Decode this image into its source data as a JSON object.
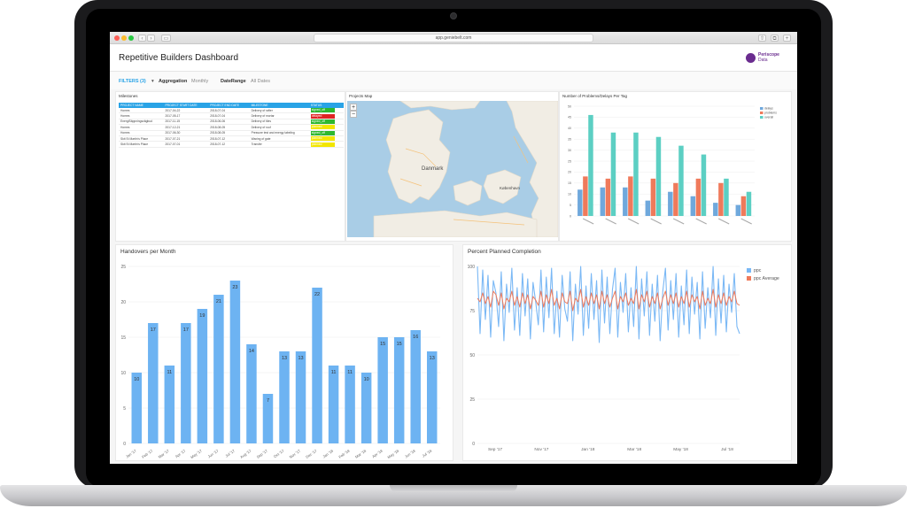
{
  "browser": {
    "url": "app.geniebelt.com"
  },
  "header": {
    "title": "Repetitive Builders Dashboard",
    "logo_line1": "Periscope",
    "logo_line2": "Data"
  },
  "filters": {
    "filters_label": "FILTERS (3)",
    "aggregation_label": "Aggregation",
    "aggregation_value": "Monthly",
    "daterange_label": "DateRange",
    "daterange_value": "All Dates"
  },
  "milestones": {
    "title": "Milestones",
    "columns": [
      "PROJECT NAME",
      "PROJECT START DATE",
      "PROJECT END DATE",
      "MILESTONE",
      "STATUS"
    ],
    "rows": [
      [
        "Homes",
        "2017-04-22",
        "2018-07-04",
        "Delivery of rafter",
        "signed_off"
      ],
      [
        "Homes",
        "2017-05-17",
        "2018-07-04",
        "Delivery of mortar",
        "delayed"
      ],
      [
        "EnergiSäppningsvägbud",
        "2017-11-15",
        "2018-06-06",
        "Delivery of tiles",
        "signed_off"
      ],
      [
        "Homes",
        "2017-12-21",
        "2018-08-05",
        "Delivery of roof",
        "planned"
      ],
      [
        "Homes",
        "2017-06-30",
        "2018-08-05",
        "Pressure test and energy labeling",
        "signed_off"
      ],
      [
        "Skit St Martin's Place",
        "2017-07-21",
        "2018-07-12",
        "Waxing of gate",
        "planned"
      ],
      [
        "Skit St Martin's Place",
        "2017-07-01",
        "2018-07-12",
        "Transfer",
        "planned"
      ]
    ],
    "status_colors": {
      "signed_off": "#2eb82e",
      "delayed": "#e02424",
      "planned": "#f2e600"
    }
  },
  "map": {
    "title": "Projects Map",
    "zoom_in": "+",
    "zoom_out": "−",
    "labels": [
      "Danmark",
      "København"
    ]
  },
  "problems_chart": {
    "title": "Number of Problems/Delays Per Tag"
  },
  "handovers_chart": {
    "title": "Handovers per Month"
  },
  "ppc_chart": {
    "title": "Percent Planned Completion"
  },
  "chart_data": [
    {
      "type": "bar",
      "title": "Number of Problems/Delays Per Tag",
      "categories": [
        "",
        "",
        "",
        "",
        "",
        "",
        "",
        ""
      ],
      "series": [
        {
          "name": "delays",
          "values": [
            12,
            13,
            13,
            7,
            11,
            9,
            6,
            5
          ],
          "color": "#6fa8dc"
        },
        {
          "name": "problems",
          "values": [
            18,
            17,
            18,
            17,
            15,
            17,
            15,
            9
          ],
          "color": "#ef7a5b"
        },
        {
          "name": "overall",
          "values": [
            46,
            38,
            38,
            36,
            32,
            28,
            17,
            11
          ],
          "color": "#5ccfc3"
        }
      ],
      "ylim": [
        0,
        50
      ],
      "yticks": [
        0,
        5,
        10,
        15,
        20,
        25,
        30,
        35,
        40,
        45,
        50
      ],
      "legend": "top-right"
    },
    {
      "type": "bar",
      "title": "Handovers per Month",
      "categories": [
        "Jan '17",
        "Feb '17",
        "Mar '17",
        "Apr '17",
        "May '17",
        "Jun '17",
        "Jul '17",
        "Aug '17",
        "Sep '17",
        "Oct '17",
        "Nov '17",
        "Dec '17",
        "Jan '18",
        "Feb '18",
        "Mar '18",
        "Apr '18",
        "May '18",
        "Jun '18",
        "Jul '18"
      ],
      "values": [
        10,
        17,
        11,
        17,
        19,
        21,
        23,
        14,
        7,
        13,
        13,
        22,
        11,
        11,
        10,
        15,
        15,
        16,
        13
      ],
      "ylim": [
        0,
        25
      ],
      "yticks": [
        0,
        5,
        10,
        15,
        20,
        25
      ],
      "color": "#6db3f2"
    },
    {
      "type": "line",
      "title": "Percent Planned Completion",
      "x_ticks": [
        "Sep '17",
        "Nov '17",
        "Jan '18",
        "Mar '18",
        "May '18",
        "Jul '18"
      ],
      "ylim": [
        0,
        100
      ],
      "yticks": [
        0,
        25,
        50,
        75,
        100
      ],
      "legend": "top-right",
      "series": [
        {
          "name": "ppc",
          "color": "#7ab8f5",
          "values": [
            100,
            62,
            98,
            70,
            95,
            60,
            92,
            85,
            66,
            97,
            58,
            90,
            74,
            99,
            64,
            88,
            61,
            96,
            72,
            93,
            59,
            91,
            80,
            67,
            98,
            63,
            94,
            71,
            99,
            62,
            86,
            60,
            95,
            76,
            69,
            97,
            58,
            90,
            73,
            100,
            61,
            89,
            65,
            96,
            70,
            92,
            57,
            98,
            68,
            94,
            62,
            87,
            99,
            60,
            91,
            74,
            96,
            63,
            88,
            66,
            100,
            59,
            93,
            72,
            97,
            61,
            90,
            69,
            95,
            58,
            86,
            99,
            64,
            92,
            70,
            96,
            60,
            89,
            67,
            98,
            62,
            94,
            73,
            91,
            59,
            97,
            65,
            88,
            71,
            100,
            61,
            93,
            68,
            95,
            63,
            90,
            74,
            96,
            66,
            62
          ]
        },
        {
          "name": "ppc Average",
          "color": "#ef7a5b",
          "values": [
            82,
            80,
            85,
            79,
            83,
            77,
            86,
            84,
            78,
            85,
            76,
            82,
            80,
            86,
            78,
            83,
            77,
            85,
            79,
            84,
            76,
            83,
            81,
            78,
            86,
            77,
            84,
            79,
            87,
            78,
            82,
            76,
            85,
            80,
            79,
            86,
            75,
            82,
            80,
            87,
            77,
            83,
            78,
            85,
            79,
            84,
            76,
            86,
            79,
            84,
            77,
            82,
            86,
            76,
            83,
            80,
            85,
            78,
            82,
            79,
            87,
            76,
            84,
            80,
            86,
            77,
            83,
            79,
            85,
            76,
            82,
            86,
            78,
            84,
            79,
            85,
            77,
            83,
            79,
            86,
            77,
            84,
            80,
            83,
            76,
            86,
            78,
            82,
            79,
            87,
            77,
            84,
            79,
            85,
            78,
            83,
            80,
            86,
            79,
            78
          ]
        }
      ]
    }
  ]
}
